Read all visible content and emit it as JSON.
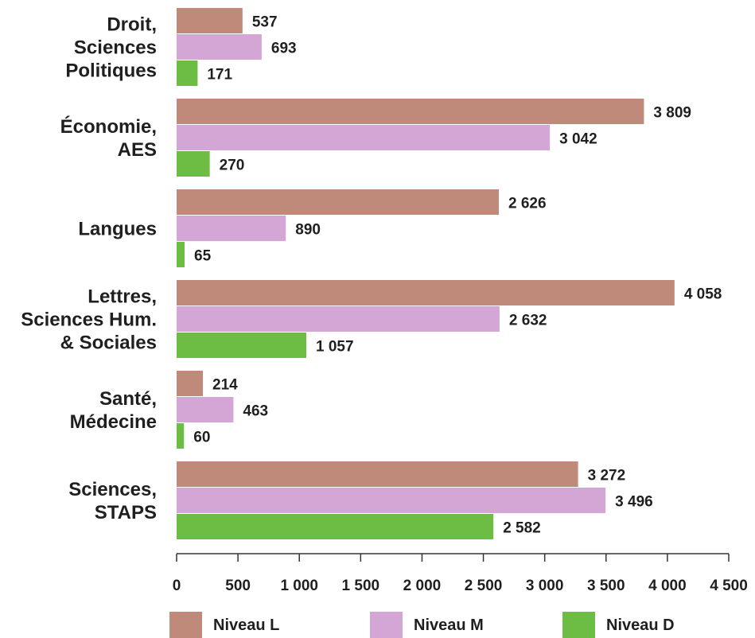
{
  "chart_data": {
    "type": "bar",
    "orientation": "horizontal",
    "categories": [
      [
        "Droit,",
        "Sciences",
        "Politiques"
      ],
      [
        "Économie,",
        "AES"
      ],
      [
        "Langues"
      ],
      [
        "Lettres,",
        "Sciences Hum.",
        "& Sociales"
      ],
      [
        "Santé,",
        "Médecine"
      ],
      [
        "Sciences,",
        "STAPS"
      ]
    ],
    "series": [
      {
        "name": "Niveau L",
        "color": "#bf8a7a",
        "values": [
          537,
          3809,
          2626,
          4058,
          214,
          3272
        ],
        "labels": [
          "537",
          "3 809",
          "2 626",
          "4 058",
          "214",
          "3 272"
        ]
      },
      {
        "name": "Niveau M",
        "color": "#d4a6d6",
        "values": [
          693,
          3042,
          890,
          2632,
          463,
          3496
        ],
        "labels": [
          "693",
          "3 042",
          "890",
          "2 632",
          "463",
          "3 496"
        ]
      },
      {
        "name": "Niveau D",
        "color": "#6dbd45",
        "values": [
          171,
          270,
          65,
          1057,
          60,
          2582
        ],
        "labels": [
          "171",
          "270",
          "65",
          "1 057",
          "60",
          "2 582"
        ]
      }
    ],
    "xlim": [
      0,
      4500
    ],
    "xticks": [
      0,
      500,
      1000,
      1500,
      2000,
      2500,
      3000,
      3500,
      4000,
      4500
    ],
    "xtick_labels": [
      "0",
      "500",
      "1 000",
      "1 500",
      "2 000",
      "2 500",
      "3 000",
      "3 500",
      "4 000",
      "4 500"
    ],
    "grid": false,
    "legend_position": "bottom"
  }
}
